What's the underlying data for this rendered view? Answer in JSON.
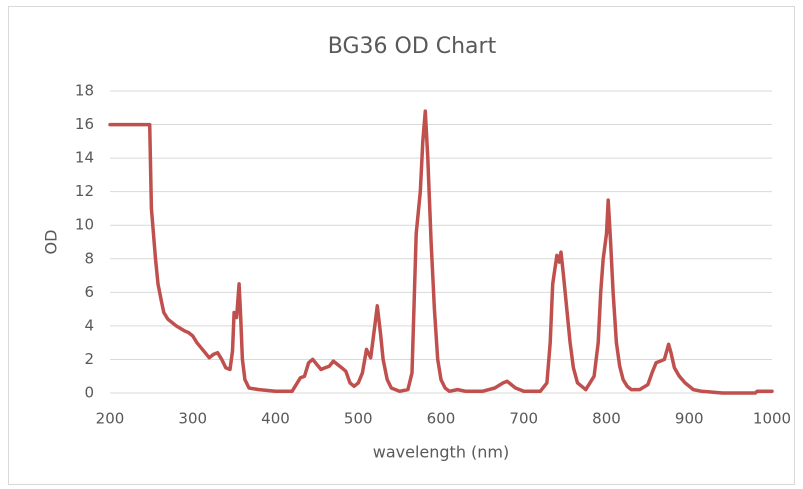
{
  "chart_data": {
    "type": "line",
    "title": "BG36 OD Chart",
    "x_label": "wavelength (nm)",
    "y_label": "OD",
    "xlim": [
      200,
      1000
    ],
    "xticks": [
      200,
      300,
      400,
      500,
      600,
      700,
      800,
      900,
      1000
    ],
    "ylim": [
      0,
      18
    ],
    "yticks": [
      0,
      2,
      4,
      6,
      8,
      10,
      12,
      14,
      16,
      18
    ],
    "grid": true,
    "series": [
      {
        "color": "#c0504d",
        "x": [
          200,
          248,
          250,
          255,
          258,
          262,
          265,
          270,
          280,
          290,
          295,
          300,
          305,
          310,
          315,
          320,
          325,
          330,
          335,
          340,
          345,
          348,
          350,
          353,
          356,
          358,
          360,
          363,
          368,
          380,
          400,
          420,
          430,
          435,
          440,
          445,
          450,
          455,
          460,
          465,
          470,
          475,
          480,
          485,
          490,
          495,
          500,
          505,
          510,
          515,
          520,
          523,
          527,
          530,
          535,
          540,
          550,
          560,
          565,
          570,
          575,
          578,
          581,
          584,
          588,
          592,
          596,
          600,
          605,
          610,
          620,
          630,
          650,
          665,
          675,
          680,
          690,
          700,
          720,
          728,
          732,
          735,
          740,
          743,
          745,
          748,
          752,
          756,
          760,
          765,
          770,
          775,
          785,
          790,
          793,
          796,
          800,
          802,
          805,
          808,
          812,
          816,
          820,
          825,
          830,
          840,
          850,
          855,
          860,
          865,
          870,
          875,
          878,
          882,
          888,
          895,
          905,
          915,
          940,
          980,
          982,
          1000
        ],
        "values": [
          16,
          16,
          11,
          8,
          6.5,
          5.5,
          4.8,
          4.4,
          4.0,
          3.7,
          3.6,
          3.4,
          3.0,
          2.7,
          2.4,
          2.1,
          2.3,
          2.4,
          2.0,
          1.5,
          1.4,
          2.5,
          4.8,
          4.5,
          6.5,
          4.5,
          2.0,
          0.8,
          0.3,
          0.2,
          0.1,
          0.1,
          0.9,
          1.0,
          1.8,
          2.0,
          1.7,
          1.4,
          1.5,
          1.6,
          1.9,
          1.7,
          1.5,
          1.3,
          0.6,
          0.4,
          0.6,
          1.2,
          2.6,
          2.1,
          4.0,
          5.2,
          3.5,
          2.0,
          0.8,
          0.3,
          0.1,
          0.2,
          1.2,
          9.5,
          12,
          15,
          16.8,
          14,
          9,
          5,
          2,
          0.8,
          0.3,
          0.1,
          0.2,
          0.1,
          0.1,
          0.3,
          0.6,
          0.7,
          0.3,
          0.1,
          0.1,
          0.6,
          3.0,
          6.5,
          8.2,
          7.8,
          8.4,
          7.0,
          5.0,
          3.0,
          1.5,
          0.6,
          0.4,
          0.2,
          1.0,
          3.0,
          6.0,
          8.0,
          9.5,
          11.5,
          9.0,
          6.0,
          3.0,
          1.6,
          0.8,
          0.4,
          0.2,
          0.2,
          0.5,
          1.2,
          1.8,
          1.9,
          2.0,
          2.9,
          2.4,
          1.5,
          1.0,
          0.6,
          0.2,
          0.1,
          0,
          0,
          0.1,
          0.1
        ]
      }
    ]
  }
}
